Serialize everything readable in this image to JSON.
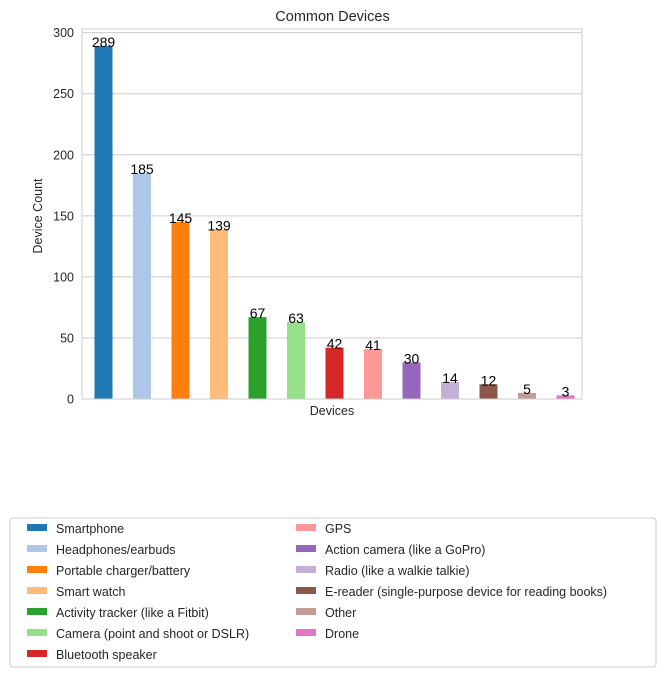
{
  "chart_data": {
    "type": "bar",
    "title": "Common Devices",
    "xlabel": "Devices",
    "ylabel": "Device Count",
    "ylim": [
      0,
      300
    ],
    "yticks": [
      0,
      50,
      100,
      150,
      200,
      250,
      300
    ],
    "grid": true,
    "legend_position": "bottom",
    "categories": [
      "Smartphone",
      "Headphones/earbuds",
      "Portable charger/battery",
      "Smart watch",
      "Activity tracker (like a Fitbit)",
      "Camera (point and shoot or DSLR)",
      "Bluetooth speaker",
      "GPS",
      "Action camera (like a GoPro)",
      "Radio (like a walkie talkie)",
      "E-reader (single-purpose device for reading books)",
      "Other",
      "Drone"
    ],
    "values": [
      289,
      185,
      145,
      139,
      67,
      63,
      42,
      41,
      30,
      14,
      12,
      5,
      3
    ],
    "colors": [
      "#1f77b4",
      "#aec7e8",
      "#ff7f0e",
      "#ffbb78",
      "#2ca02c",
      "#98df8a",
      "#d62728",
      "#ff9896",
      "#9467bd",
      "#c5b0d5",
      "#8c564b",
      "#c49c94",
      "#e377c2"
    ]
  }
}
